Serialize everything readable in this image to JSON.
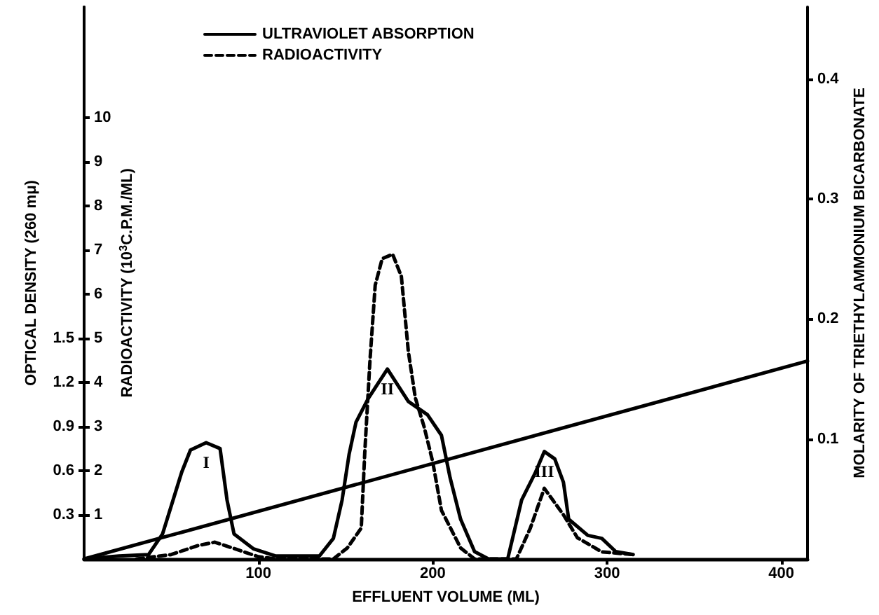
{
  "chart_data": {
    "type": "line",
    "xlabel": "EFFLUENT VOLUME (ML)",
    "ylabel": "OPTICAL DENSITY (260 mμ)",
    "y3label": "RADIOACTIVITY (10$^{3}$C.P.M./ML)",
    "y2label": "MOLARITY OF TRIETHYLAMMONIUM BICARBONATE",
    "xlim": [
      0,
      415
    ],
    "xticks": [
      100,
      200,
      300,
      400
    ],
    "ylim": [
      0,
      3.75
    ],
    "yticks": [
      0.3,
      0.6,
      0.9,
      1.2,
      1.5
    ],
    "y3lim": [
      0,
      12.5
    ],
    "y3ticks": [
      1,
      2,
      3,
      4,
      5,
      6,
      7,
      8,
      9,
      10
    ],
    "y2lim": [
      0,
      0.46
    ],
    "y2ticks": [
      0.1,
      0.2,
      0.3,
      0.4
    ],
    "series": [
      {
        "name": "ULTRAVIOLET ABSORPTION",
        "color": "#000000",
        "line_style": "solid",
        "axis": "y",
        "x": [
          0,
          20,
          37,
          45,
          56,
          61,
          70,
          78,
          82,
          86,
          97,
          110,
          135,
          143,
          148,
          152,
          156,
          163,
          174,
          186,
          197,
          205,
          210,
          216,
          224,
          232,
          243,
          251,
          259,
          264,
          270,
          275,
          278,
          289,
          297,
          305,
          315
        ],
        "values": [
          0,
          0.02,
          0.03,
          0.17,
          0.59,
          0.74,
          0.79,
          0.75,
          0.4,
          0.17,
          0.07,
          0.02,
          0.02,
          0.14,
          0.4,
          0.71,
          0.93,
          1.09,
          1.29,
          1.07,
          0.98,
          0.84,
          0.55,
          0.27,
          0.05,
          0,
          0,
          0.4,
          0.59,
          0.73,
          0.68,
          0.52,
          0.27,
          0.16,
          0.14,
          0.05,
          0.03
        ]
      },
      {
        "name": "RADIOACTIVITY",
        "color": "#000000",
        "line_style": "dashed",
        "axis": "y3",
        "x": [
          30,
          50,
          65,
          75,
          85,
          100,
          110,
          143,
          151,
          159,
          161,
          164,
          167,
          171,
          177,
          182,
          186,
          190,
          195,
          200,
          205,
          216,
          224,
          248,
          256,
          264,
          275,
          283,
          297,
          315
        ],
        "values": [
          0,
          0.1,
          0.3,
          0.38,
          0.25,
          0.05,
          0,
          0,
          0.25,
          0.7,
          2.4,
          4.5,
          6.2,
          6.8,
          6.9,
          6.4,
          4.7,
          3.65,
          3.0,
          2.2,
          1.1,
          0.25,
          0,
          0,
          0.7,
          1.6,
          1.0,
          0.48,
          0.16,
          0.1
        ]
      },
      {
        "color": "#000000",
        "line_style": "solid",
        "axis": "y2",
        "x": [
          0,
          415
        ],
        "values": [
          0,
          0.165
        ]
      }
    ],
    "annotations": [
      {
        "text": "I",
        "x": 70,
        "y": 0.79
      },
      {
        "text": "II",
        "x": 174,
        "y": 1.29
      },
      {
        "text": "III",
        "x": 264,
        "y": 0.73
      }
    ],
    "legend": "top left",
    "grid": false,
    "marker": "none"
  }
}
